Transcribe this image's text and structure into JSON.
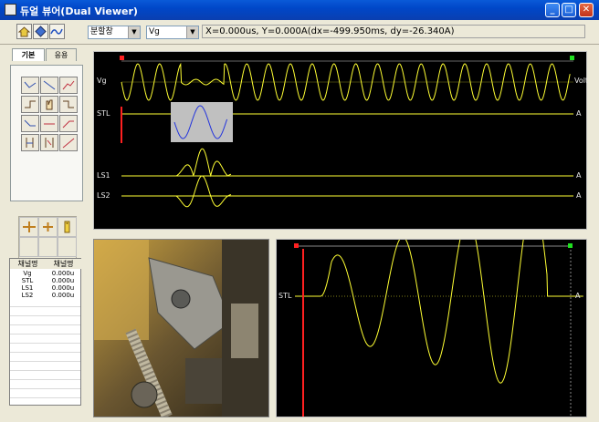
{
  "window": {
    "title": "듀얼 뷰어(Dual Viewer)"
  },
  "toolbar": {
    "view_select": "분할창",
    "channel_select": "Vg",
    "readout": "X=0.000us, Y=0.000A(dx=-499.950ms, dy=-26.340A)"
  },
  "tabs": [
    {
      "label": "기본"
    },
    {
      "label": "응용"
    }
  ],
  "channel_table": {
    "headers": [
      "채널명",
      "채널명"
    ],
    "rows": [
      {
        "name": "Vg",
        "value": "0.000u"
      },
      {
        "name": "STL",
        "value": "0.000u"
      },
      {
        "name": "LS1",
        "value": "0.000u"
      },
      {
        "name": "LS2",
        "value": "0.000u"
      }
    ]
  },
  "scope_main": {
    "traces": [
      {
        "label": "Vg",
        "unit": "Volt"
      },
      {
        "label": "STL",
        "unit": "A"
      },
      {
        "label": "LS1",
        "unit": "A"
      },
      {
        "label": "LS2",
        "unit": "A"
      }
    ]
  },
  "scope_zoom": {
    "label": "STL",
    "unit": "A"
  },
  "colors": {
    "trace": "#ffff33",
    "cursor": "#ff2020",
    "zoom_trace": "#2233dd"
  }
}
